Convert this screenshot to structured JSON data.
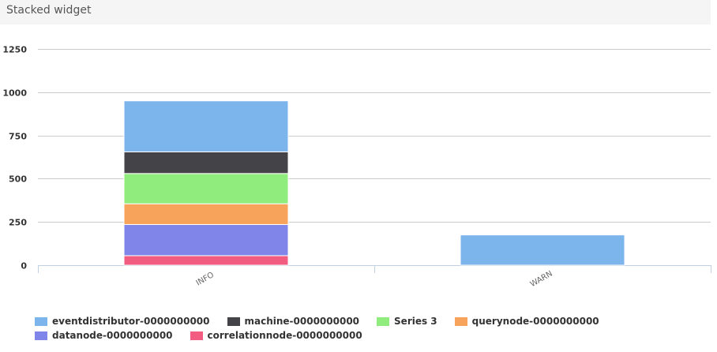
{
  "widget": {
    "title": "Stacked widget"
  },
  "chart_data": {
    "type": "bar",
    "stacked": true,
    "categories": [
      "INFO",
      "WARN"
    ],
    "series": [
      {
        "name": "correlationnode-0000000000",
        "color": "#f15c80",
        "values": [
          55,
          0
        ]
      },
      {
        "name": "datanode-0000000000",
        "color": "#8085e9",
        "values": [
          180,
          0
        ]
      },
      {
        "name": "querynode-0000000000",
        "color": "#f7a35c",
        "values": [
          120,
          0
        ]
      },
      {
        "name": "Series 3",
        "color": "#90ed7d",
        "values": [
          175,
          0
        ]
      },
      {
        "name": "machine-0000000000",
        "color": "#434348",
        "values": [
          125,
          0
        ]
      },
      {
        "name": "eventdistributor-0000000000",
        "color": "#7cb5ec",
        "values": [
          295,
          175
        ]
      }
    ],
    "y_ticks": [
      "0",
      "250",
      "500",
      "750",
      "1000",
      "1250"
    ],
    "ylim": [
      0,
      1250
    ],
    "grid": true,
    "legend_position": "bottom",
    "legend_order": [
      5,
      4,
      3,
      2,
      1,
      0
    ]
  }
}
